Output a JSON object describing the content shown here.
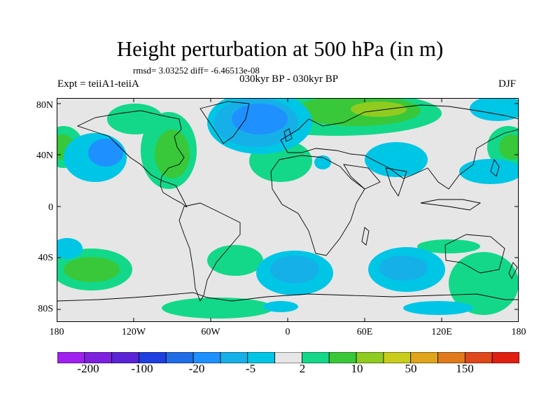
{
  "header": {
    "title": "Height perturbation at 500 hPa (in m)",
    "stats": "rmsd= 3.03252 diff= -6.46513e-08",
    "left_label": "Expt = teiiA1-teiiA",
    "subtitle": "030kyr BP - 030kyr BP",
    "right_label": "DJF"
  },
  "map": {
    "lat_labels": [
      "80N",
      "40N",
      "0",
      "40S",
      "80S"
    ],
    "lon_labels": [
      "180",
      "120W",
      "60W",
      "0",
      "60E",
      "120E",
      "180"
    ],
    "background_color": "#e6e6e6"
  },
  "colorbar": {
    "colors": [
      "#a020f0",
      "#7f1fe0",
      "#5a23d6",
      "#1f3fe0",
      "#1f6ee6",
      "#1e90ff",
      "#16b0e8",
      "#00c6e6",
      "#e6e6e6",
      "#13d889",
      "#38c83a",
      "#8fcc1f",
      "#c8cc1a",
      "#e0a51a",
      "#e07a1a",
      "#e0471a",
      "#e01f10"
    ],
    "labels": [
      "-200",
      "-100",
      "-20",
      "-5",
      "2",
      "10",
      "50",
      "150"
    ]
  }
}
